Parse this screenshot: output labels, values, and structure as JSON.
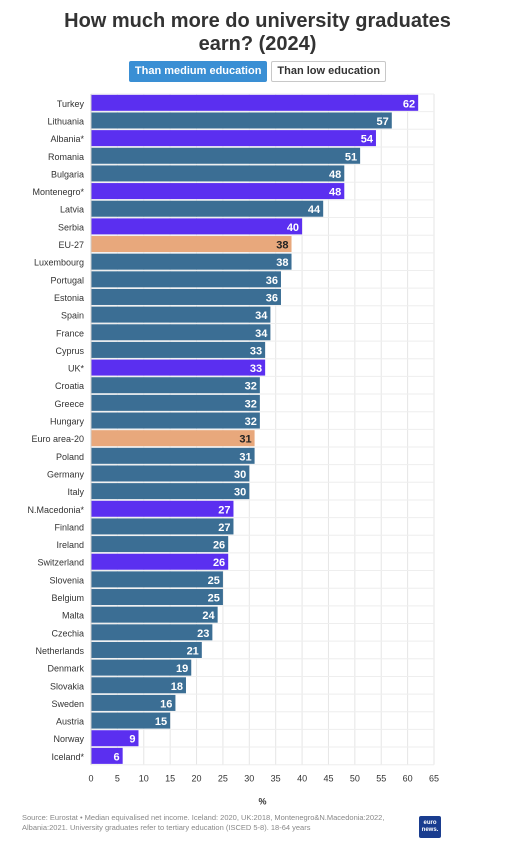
{
  "title_line1": "How much more do university graduates",
  "title_line2": "earn? (2024)",
  "toggles": [
    {
      "label": "Than medium education",
      "active": true
    },
    {
      "label": "Than low education",
      "active": false
    }
  ],
  "source": "Source: Eurostat • Median equivalised net income. Iceland: 2020, UK:2018, Montenegro&N.Macedonia:2022, Albania:2021. University graduates refer to tertiary education (ISCED 5-8). 18-64 years",
  "logo": "euro news.",
  "colors": {
    "eu": "#3b6e94",
    "non_eu": "#5b2ff0",
    "aggregate": "#e8a87c"
  },
  "chart_data": {
    "type": "bar",
    "orientation": "horizontal",
    "xlabel": "%",
    "xlim": [
      0,
      65
    ],
    "xticks": [
      0,
      5,
      10,
      15,
      20,
      25,
      30,
      35,
      40,
      45,
      50,
      55,
      60,
      65
    ],
    "grid": true,
    "categories": [
      "Turkey",
      "Lithuania",
      "Albania*",
      "Romania",
      "Bulgaria",
      "Montenegro*",
      "Latvia",
      "Serbia",
      "EU-27",
      "Luxembourg",
      "Portugal",
      "Estonia",
      "Spain",
      "France",
      "Cyprus",
      "UK*",
      "Croatia",
      "Greece",
      "Hungary",
      "Euro area-20",
      "Poland",
      "Germany",
      "Italy",
      "N.Macedonia*",
      "Finland",
      "Ireland",
      "Switzerland",
      "Slovenia",
      "Belgium",
      "Malta",
      "Czechia",
      "Netherlands",
      "Denmark",
      "Slovakia",
      "Sweden",
      "Austria",
      "Norway",
      "Iceland*"
    ],
    "values": [
      62,
      57,
      54,
      51,
      48,
      48,
      44,
      40,
      38,
      38,
      36,
      36,
      34,
      34,
      33,
      33,
      32,
      32,
      32,
      31,
      31,
      30,
      30,
      27,
      27,
      26,
      26,
      25,
      25,
      24,
      23,
      21,
      19,
      18,
      16,
      15,
      9,
      6
    ],
    "groups": [
      "non_eu",
      "eu",
      "non_eu",
      "eu",
      "eu",
      "non_eu",
      "eu",
      "non_eu",
      "aggregate",
      "eu",
      "eu",
      "eu",
      "eu",
      "eu",
      "eu",
      "non_eu",
      "eu",
      "eu",
      "eu",
      "aggregate",
      "eu",
      "eu",
      "eu",
      "non_eu",
      "eu",
      "eu",
      "non_eu",
      "eu",
      "eu",
      "eu",
      "eu",
      "eu",
      "eu",
      "eu",
      "eu",
      "eu",
      "non_eu",
      "non_eu"
    ]
  }
}
